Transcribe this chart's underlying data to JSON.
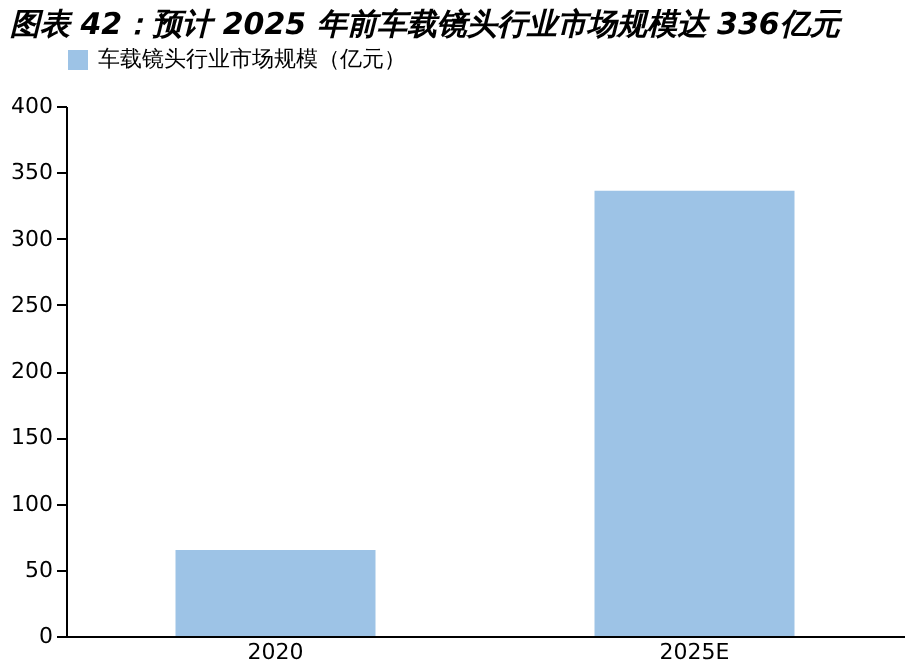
{
  "chart_data": {
    "type": "bar",
    "title": "图表 42：预计 2025 年前车载镜头行业市场规模达 336亿元",
    "categories": [
      "2020",
      "2025E"
    ],
    "series": [
      {
        "name": "车载镜头行业市场规模（亿元）",
        "color": "#9dc3e6",
        "values": [
          65,
          336
        ]
      }
    ],
    "ylim": [
      0,
      400
    ],
    "yticks": [
      0,
      50,
      100,
      150,
      200,
      250,
      300,
      350,
      400
    ],
    "grid": false,
    "legend": "top"
  }
}
